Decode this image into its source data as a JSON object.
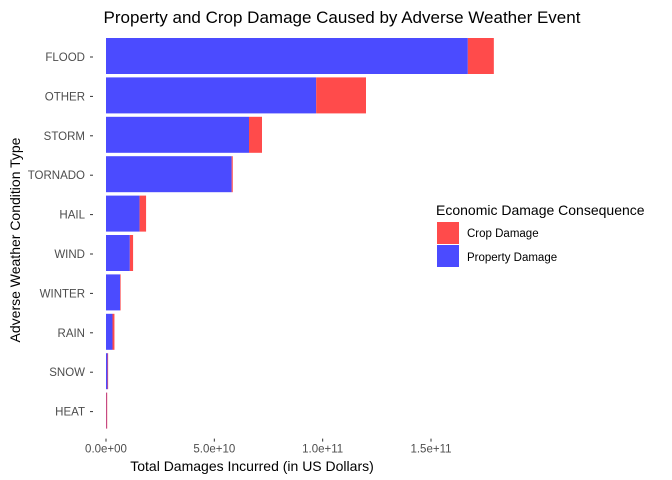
{
  "chart_data": {
    "type": "bar",
    "orientation": "horizontal",
    "stacked": true,
    "title": "Property and Crop Damage Caused by Adverse Weather Event",
    "xlabel": "Total Damages Incurred (in US Dollars)",
    "ylabel": "Adverse Weather Condition Type",
    "categories": [
      "FLOOD",
      "OTHER",
      "STORM",
      "TORNADO",
      "HAIL",
      "WIND",
      "WINTER",
      "RAIN",
      "SNOW",
      "HEAT"
    ],
    "series": [
      {
        "name": "Property Damage",
        "color": "#4b4bff",
        "values": [
          167000000000.0,
          97000000000.0,
          66000000000.0,
          58000000000.0,
          15500000000.0,
          11000000000.0,
          6500000000.0,
          3000000000.0,
          700000000.0,
          150000000.0
        ]
      },
      {
        "name": "Crop Damage",
        "color": "#ff4b4b",
        "values": [
          12000000000.0,
          23000000000.0,
          6000000000.0,
          500000000.0,
          3000000000.0,
          1500000000.0,
          100000000.0,
          900000000.0,
          150000000.0,
          400000000.0
        ]
      }
    ],
    "xlim": [
      0,
      180000000000.0
    ],
    "xticks": [
      0,
      50000000000.0,
      100000000000.0,
      150000000000.0
    ],
    "xtick_labels": [
      "0.0e+00",
      "5.0e+10",
      "1.0e+11",
      "1.5e+11"
    ],
    "grid": false,
    "legend": {
      "title": "Economic Damage Consequence",
      "position": "right",
      "entries": [
        {
          "label": "Crop Damage",
          "color": "#ff4b4b"
        },
        {
          "label": "Property Damage",
          "color": "#4b4bff"
        }
      ]
    }
  }
}
